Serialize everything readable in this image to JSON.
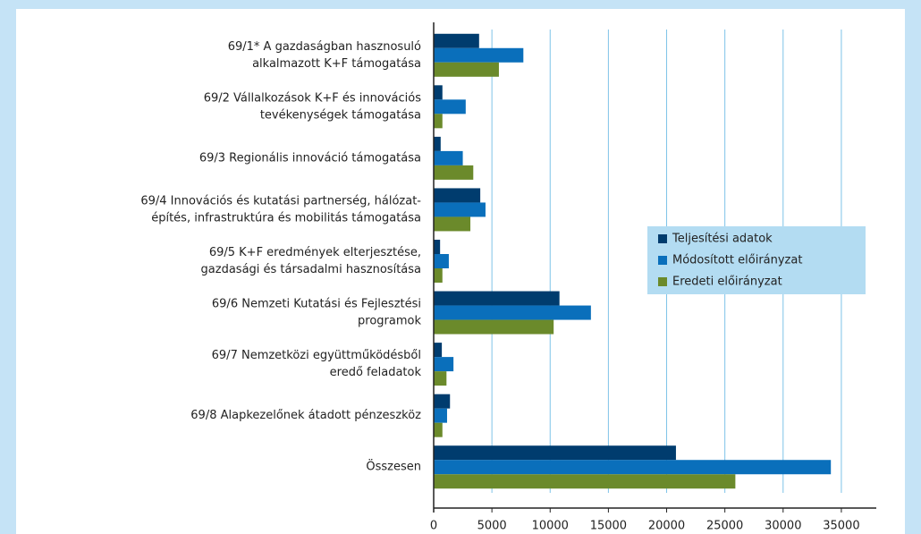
{
  "chart_data": {
    "type": "hbar",
    "categories": [
      [
        "69/1* A gazdaságban hasznosuló",
        "alkalmazott K+F támogatása"
      ],
      [
        "69/2 Vállalkozások K+F és innovációs",
        "tevékenységek támogatása"
      ],
      [
        "69/3 Regionális innováció támogatása"
      ],
      [
        "69/4 Innovációs és kutatási partnerség, hálózat-",
        "építés, infrastruktúra és mobilitás támogatása"
      ],
      [
        "69/5 K+F eredmények elterjesztése,",
        "gazdasági és társadalmi hasznosítása"
      ],
      [
        "69/6 Nemzeti Kutatási és Fejlesztési",
        "programok"
      ],
      [
        "69/7 Nemzetközi együttműködésből",
        "eredő feladatok"
      ],
      [
        "69/8 Alapkezelőnek átadott pénzeszköz"
      ],
      [
        "Összesen"
      ]
    ],
    "series": [
      {
        "name": "Teljesítési adatok",
        "color": "#003c6e",
        "values": [
          3900,
          750,
          600,
          4000,
          550,
          10800,
          700,
          1400,
          20800
        ]
      },
      {
        "name": "Módosított előirányzat",
        "color": "#0a6fbb",
        "values": [
          7700,
          2750,
          2500,
          4450,
          1300,
          13500,
          1700,
          1150,
          34100
        ]
      },
      {
        "name": "Eredeti előirányzat",
        "color": "#6b8a2b",
        "values": [
          5600,
          750,
          3400,
          3150,
          750,
          10300,
          1100,
          750,
          25900
        ]
      }
    ],
    "xlim": [
      0,
      38000
    ],
    "xticks": [
      0,
      5000,
      10000,
      15000,
      20000,
      25000,
      30000,
      35000
    ],
    "grid": true,
    "legend": "right"
  }
}
